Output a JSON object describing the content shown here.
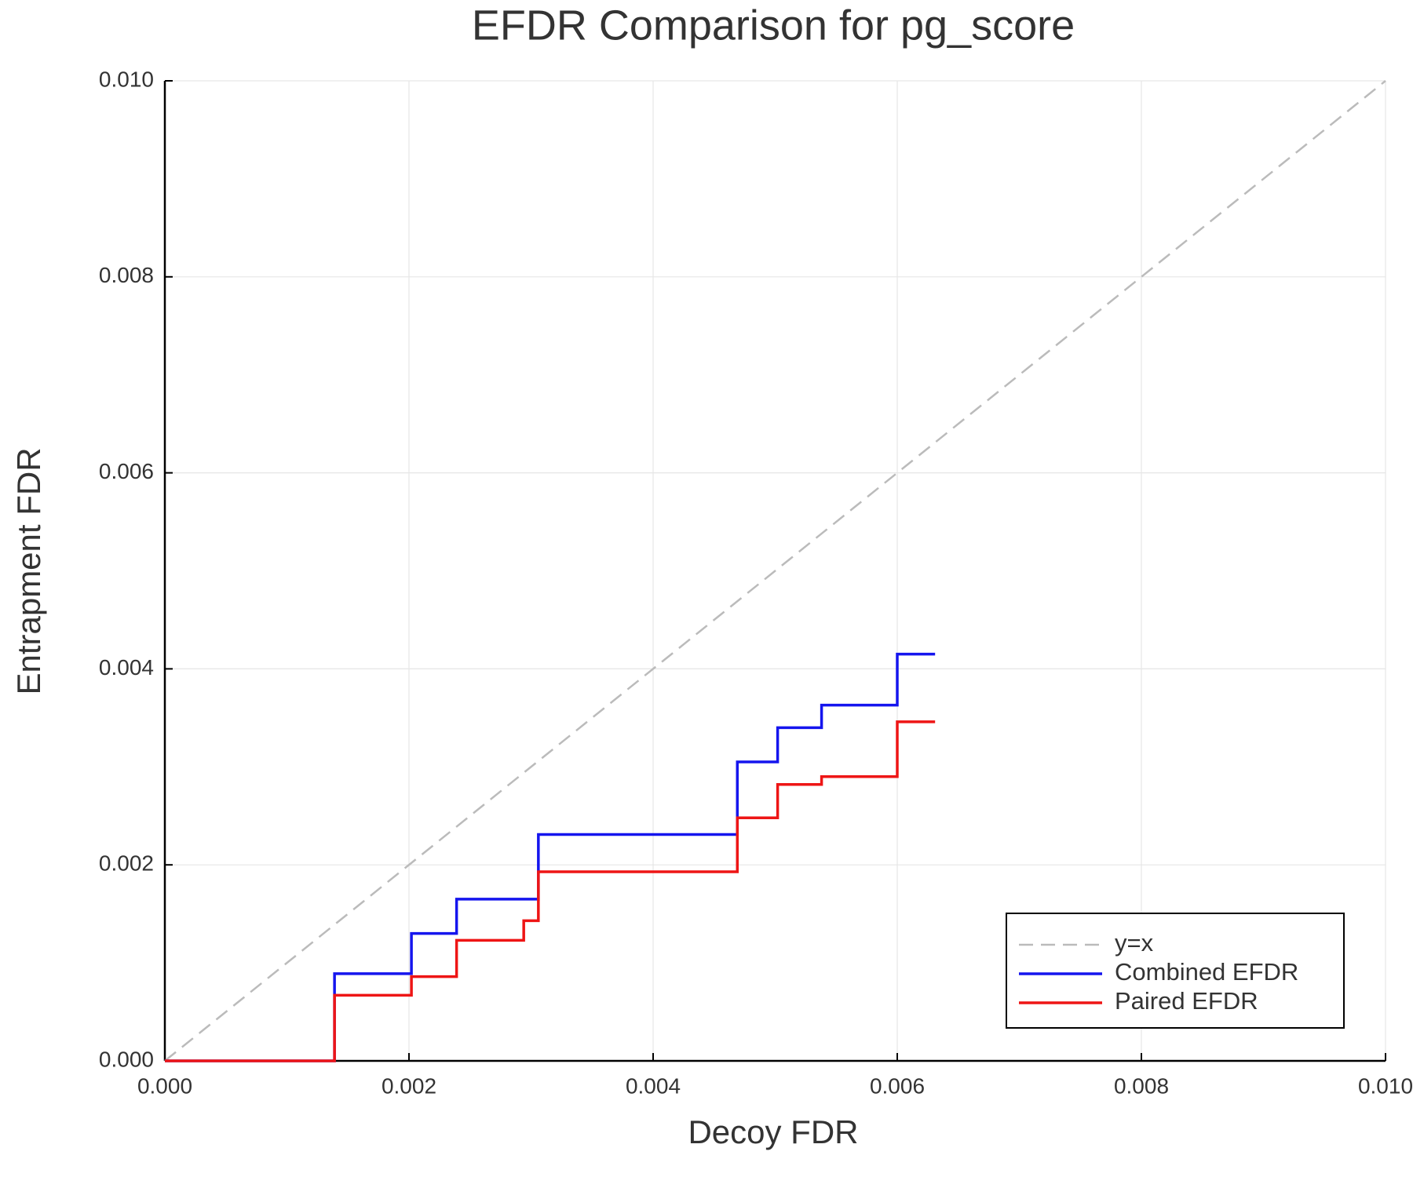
{
  "chart_data": {
    "type": "line",
    "title": "EFDR Comparison for pg_score",
    "x_label": "Decoy FDR",
    "y_label": "Entrapment FDR",
    "xlim": [
      0,
      0.01
    ],
    "ylim": [
      0,
      0.01
    ],
    "xticks": [
      {
        "value": 0,
        "label": "0.000"
      },
      {
        "value": 0.002,
        "label": "0.002"
      },
      {
        "value": 0.004,
        "label": "0.004"
      },
      {
        "value": 0.006,
        "label": "0.006"
      },
      {
        "value": 0.008,
        "label": "0.008"
      },
      {
        "value": 0.01,
        "label": "0.010"
      }
    ],
    "yticks": [
      {
        "value": 0,
        "label": "0.000"
      },
      {
        "value": 0.002,
        "label": "0.002"
      },
      {
        "value": 0.004,
        "label": "0.004"
      },
      {
        "value": 0.006,
        "label": "0.006"
      },
      {
        "value": 0.008,
        "label": "0.008"
      },
      {
        "value": 0.01,
        "label": "0.010"
      }
    ],
    "grid": true,
    "legend_position": "lower right",
    "series": [
      {
        "name": "y=x",
        "color": "#bbbbbb",
        "dashed": true,
        "x": [
          0,
          0.01
        ],
        "values": [
          0,
          0.01
        ]
      },
      {
        "name": "Combined EFDR",
        "color": "#1515ee",
        "dashed": false,
        "x": [
          0,
          0.00139,
          0.00139,
          0.00202,
          0.00202,
          0.00239,
          0.00239,
          0.00306,
          0.00306,
          0.00469,
          0.00469,
          0.00502,
          0.00502,
          0.00538,
          0.00538,
          0.006,
          0.006,
          0.00631
        ],
        "values": [
          0,
          0,
          0.00089,
          0.00089,
          0.0013,
          0.0013,
          0.00165,
          0.00165,
          0.00231,
          0.00231,
          0.00305,
          0.00305,
          0.0034,
          0.0034,
          0.00363,
          0.00363,
          0.00415,
          0.00415
        ]
      },
      {
        "name": "Paired EFDR",
        "color": "#ee1515",
        "dashed": false,
        "x": [
          0,
          0.00139,
          0.00139,
          0.00202,
          0.00202,
          0.00239,
          0.00239,
          0.00294,
          0.00294,
          0.00306,
          0.00306,
          0.00469,
          0.00469,
          0.00502,
          0.00502,
          0.00538,
          0.00538,
          0.006,
          0.006,
          0.00631
        ],
        "values": [
          0,
          0,
          0.00067,
          0.00067,
          0.00086,
          0.00086,
          0.00123,
          0.00123,
          0.00143,
          0.00143,
          0.00193,
          0.00193,
          0.00248,
          0.00248,
          0.00282,
          0.00282,
          0.0029,
          0.0029,
          0.00346,
          0.00346
        ]
      }
    ]
  }
}
